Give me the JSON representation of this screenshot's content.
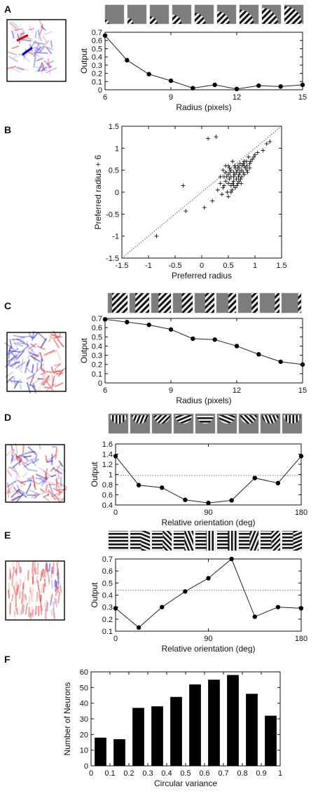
{
  "chart_data": [
    {
      "panel": "A",
      "type": "line",
      "xlabel": "Radius (pixels)",
      "ylabel": "Output",
      "xlim": [
        6,
        15
      ],
      "ylim": [
        0,
        0.7
      ],
      "xticks": [
        6,
        9,
        12,
        15
      ],
      "yticks": [
        0,
        0.1,
        0.2,
        0.3,
        0.4,
        0.5,
        0.6,
        0.7
      ],
      "x": [
        6,
        7,
        8,
        9,
        10,
        11,
        12,
        13,
        14,
        15
      ],
      "values": [
        0.66,
        0.36,
        0.19,
        0.11,
        0.02,
        0.06,
        0.01,
        0.05,
        0.04,
        0.06
      ],
      "stimuli": "circular gratings of increasing radius",
      "receptive_field_colors": [
        "#e33030",
        "#3b3bd6"
      ]
    },
    {
      "panel": "B",
      "type": "scatter",
      "xlabel": "Preferred radius",
      "ylabel": "Preferred radius + 6",
      "xlim": [
        -1.5,
        1.5
      ],
      "ylim": [
        -1.5,
        1.5
      ],
      "xticks": [
        -1.5,
        -1,
        -0.5,
        0,
        0.5,
        1,
        1.5
      ],
      "yticks": [
        -1.5,
        -1,
        -0.5,
        0,
        0.5,
        1,
        1.5
      ],
      "diagonal": "dotted identity line",
      "points": [
        [
          -0.85,
          -1.0
        ],
        [
          -0.35,
          0.15
        ],
        [
          -0.3,
          -0.43
        ],
        [
          0.12,
          1.22
        ],
        [
          0.27,
          1.26
        ],
        [
          0.05,
          -0.35
        ],
        [
          0.2,
          -0.2
        ],
        [
          0.3,
          0.05
        ],
        [
          0.35,
          0.2
        ],
        [
          0.4,
          0.1
        ],
        [
          0.42,
          0.35
        ],
        [
          0.45,
          0.25
        ],
        [
          0.48,
          0.0
        ],
        [
          0.5,
          0.4
        ],
        [
          0.52,
          0.3
        ],
        [
          0.55,
          0.15
        ],
        [
          0.55,
          0.5
        ],
        [
          0.58,
          0.2
        ],
        [
          0.6,
          0.45
        ],
        [
          0.6,
          0.35
        ],
        [
          0.62,
          0.6
        ],
        [
          0.63,
          0.1
        ],
        [
          0.65,
          0.3
        ],
        [
          0.67,
          0.5
        ],
        [
          0.68,
          0.2
        ],
        [
          0.7,
          0.4
        ],
        [
          0.72,
          0.65
        ],
        [
          0.73,
          0.3
        ],
        [
          0.75,
          0.5
        ],
        [
          0.78,
          0.45
        ],
        [
          0.8,
          0.7
        ],
        [
          0.82,
          0.55
        ],
        [
          0.85,
          0.6
        ],
        [
          0.88,
          0.8
        ],
        [
          0.9,
          0.65
        ],
        [
          0.95,
          0.75
        ],
        [
          1.0,
          0.85
        ],
        [
          1.05,
          0.9
        ],
        [
          1.15,
          0.95
        ],
        [
          1.22,
          1.1
        ],
        [
          1.28,
          1.15
        ],
        [
          0.4,
          0.5
        ],
        [
          0.45,
          0.45
        ],
        [
          0.5,
          0.6
        ],
        [
          0.5,
          0.2
        ],
        [
          0.55,
          0.35
        ],
        [
          0.6,
          0.25
        ],
        [
          0.65,
          0.45
        ],
        [
          0.7,
          0.55
        ],
        [
          0.7,
          0.25
        ],
        [
          0.75,
          0.35
        ],
        [
          0.8,
          0.4
        ],
        [
          0.85,
          0.5
        ],
        [
          0.9,
          0.55
        ],
        [
          0.35,
          0.35
        ],
        [
          0.38,
          -0.05
        ],
        [
          0.45,
          0.6
        ],
        [
          0.52,
          0.55
        ],
        [
          0.58,
          0.7
        ],
        [
          0.62,
          0.4
        ],
        [
          0.66,
          0.15
        ],
        [
          0.72,
          0.45
        ],
        [
          0.76,
          0.6
        ],
        [
          0.8,
          0.6
        ],
        [
          0.84,
          0.7
        ],
        [
          0.92,
          0.7
        ],
        [
          0.98,
          0.8
        ],
        [
          0.42,
          0.15
        ],
        [
          0.47,
          0.35
        ],
        [
          0.53,
          0.45
        ],
        [
          0.57,
          0.05
        ],
        [
          0.63,
          0.55
        ],
        [
          0.69,
          0.35
        ],
        [
          0.74,
          0.2
        ],
        [
          0.78,
          0.65
        ],
        [
          0.86,
          0.45
        ],
        [
          0.55,
          0.0
        ],
        [
          0.6,
          0.15
        ],
        [
          0.5,
          -0.1
        ],
        [
          0.68,
          0.6
        ]
      ]
    },
    {
      "panel": "C",
      "type": "line",
      "xlabel": "Radius (pixels)",
      "ylabel": "Output",
      "xlim": [
        6,
        15
      ],
      "ylim": [
        0,
        0.7
      ],
      "xticks": [
        6,
        9,
        12,
        15
      ],
      "yticks": [
        0,
        0.1,
        0.2,
        0.3,
        0.4,
        0.5,
        0.6,
        0.7
      ],
      "x": [
        6,
        7,
        8,
        9,
        10,
        11,
        12,
        13,
        14,
        15
      ],
      "values": [
        0.69,
        0.66,
        0.63,
        0.58,
        0.48,
        0.47,
        0.4,
        0.31,
        0.23,
        0.2
      ]
    },
    {
      "panel": "D",
      "type": "line",
      "xlabel": "Relative orientation (deg)",
      "ylabel": "Output",
      "xlim": [
        0,
        180
      ],
      "ylim": [
        0.4,
        1.6
      ],
      "xticks": [
        0,
        90,
        180
      ],
      "yticks": [
        0.4,
        0.6,
        0.8,
        1,
        1.2,
        1.4,
        1.6
      ],
      "reference_line": 0.98,
      "x": [
        0,
        22.5,
        45,
        67.5,
        90,
        112.5,
        135,
        157.5,
        180
      ],
      "values": [
        1.36,
        0.79,
        0.74,
        0.5,
        0.44,
        0.49,
        0.93,
        0.83,
        1.36
      ]
    },
    {
      "panel": "E",
      "type": "line",
      "xlabel": "Relative orientation (deg)",
      "ylabel": "Output",
      "xlim": [
        0,
        180
      ],
      "ylim": [
        0.1,
        0.7
      ],
      "xticks": [
        0,
        90,
        180
      ],
      "yticks": [
        0.1,
        0.2,
        0.3,
        0.4,
        0.5,
        0.6,
        0.7
      ],
      "reference_line": 0.44,
      "x": [
        0,
        22.5,
        45,
        67.5,
        90,
        112.5,
        135,
        157.5,
        180
      ],
      "values": [
        0.29,
        0.13,
        0.3,
        0.43,
        0.54,
        0.7,
        0.22,
        0.3,
        0.29
      ]
    },
    {
      "panel": "F",
      "type": "bar",
      "xlabel": "Circular variance",
      "ylabel": "Number of Neurons",
      "xlim": [
        0,
        1
      ],
      "ylim": [
        0,
        60
      ],
      "xticks": [
        0,
        0.1,
        0.2,
        0.3,
        0.4,
        0.5,
        0.6,
        0.7,
        0.8,
        0.9,
        1
      ],
      "yticks": [
        0,
        10,
        20,
        30,
        40,
        50,
        60
      ],
      "bin_centers": [
        0.05,
        0.15,
        0.25,
        0.35,
        0.45,
        0.55,
        0.65,
        0.75,
        0.85,
        0.95
      ],
      "values": [
        18,
        17,
        37,
        38,
        44,
        52,
        55,
        58,
        46,
        32
      ]
    }
  ]
}
